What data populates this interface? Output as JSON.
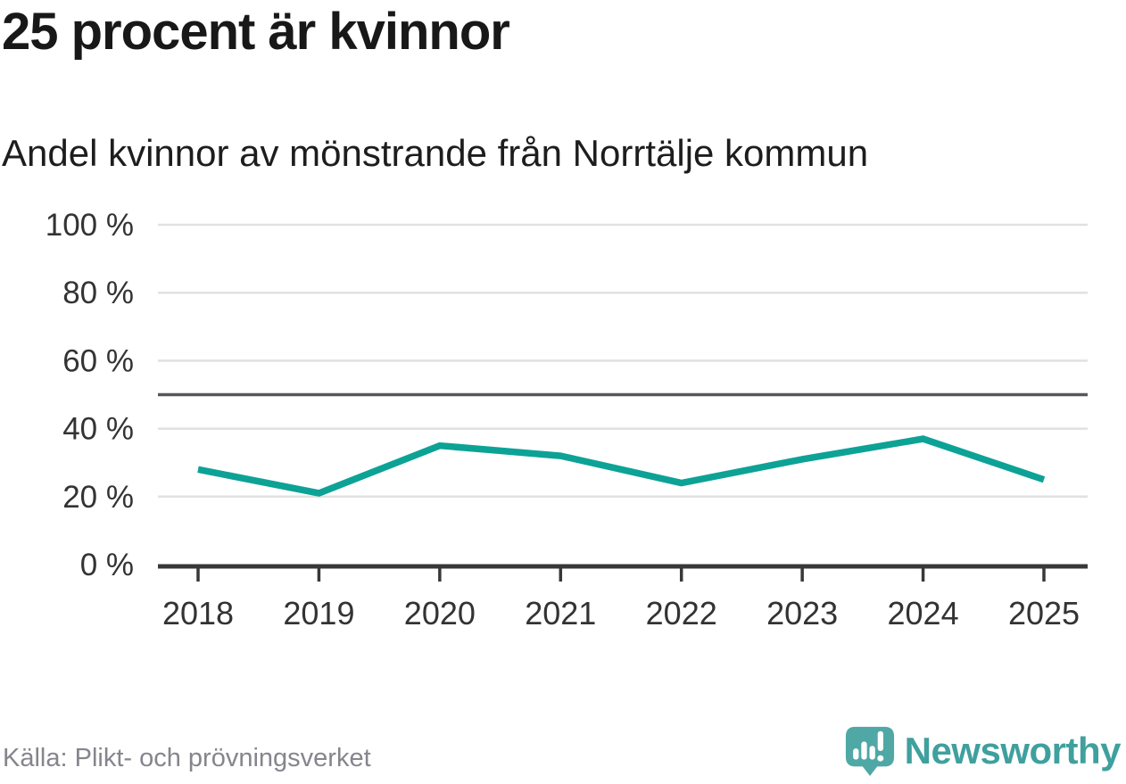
{
  "header": {
    "title": "25 procent är kvinnor",
    "subtitle": "Andel kvinnor av mönstrande från Norrtälje kommun"
  },
  "footer": {
    "source": "Källa: Plikt- och prövningsverket",
    "brand_name": "Newsworthy"
  },
  "colors": {
    "line": "#0da296",
    "grid": "#e1e1e1",
    "axis": "#38383a",
    "reference_line": "#57575b",
    "tick_label": "#333333",
    "source_text": "#85858d",
    "brand_teal": "#3fa09e",
    "logo_teal": "#4fa8a5"
  },
  "chart_data": {
    "type": "line",
    "title": "25 procent är kvinnor",
    "subtitle": "Andel kvinnor av mönstrande från Norrtälje kommun",
    "x": [
      2018,
      2019,
      2020,
      2021,
      2022,
      2023,
      2024,
      2025
    ],
    "series": [
      {
        "name": "Andel kvinnor av mönstrande, Norrtälje kommun",
        "values": [
          28,
          21,
          35,
          32,
          24,
          31,
          37,
          25
        ]
      }
    ],
    "unit": "%",
    "xlabel": "",
    "ylabel": "",
    "ylim": [
      0,
      100
    ],
    "yticks": [
      0,
      20,
      40,
      60,
      80,
      100
    ],
    "ytick_format": "{v} %",
    "reference_line": 50,
    "grid": "horizontal",
    "legend": "none",
    "line_color": "#0da296"
  }
}
